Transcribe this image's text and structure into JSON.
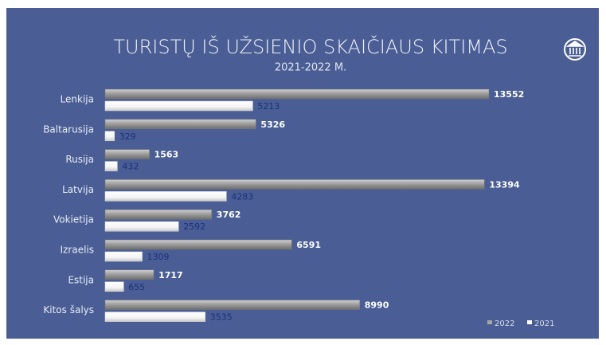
{
  "chart_data": {
    "type": "bar",
    "orientation": "horizontal",
    "title": "TURISTŲ IŠ UŽSIENIO SKAIČIAUS KITIMAS",
    "subtitle": "2021-2022 M.",
    "categories": [
      "Lenkija",
      "Baltarusija",
      "Rusija",
      "Latvija",
      "Vokietija",
      "Izraelis",
      "Estija",
      "Kitos šalys"
    ],
    "series": [
      {
        "name": "2022",
        "color": "#a6a6a6",
        "values": [
          13552,
          5326,
          1563,
          13394,
          3762,
          6591,
          1717,
          8990
        ]
      },
      {
        "name": "2021",
        "color": "#ffffff",
        "values": [
          5213,
          329,
          432,
          4283,
          2592,
          1309,
          655,
          3535
        ]
      }
    ],
    "legend": "bottom-right"
  }
}
